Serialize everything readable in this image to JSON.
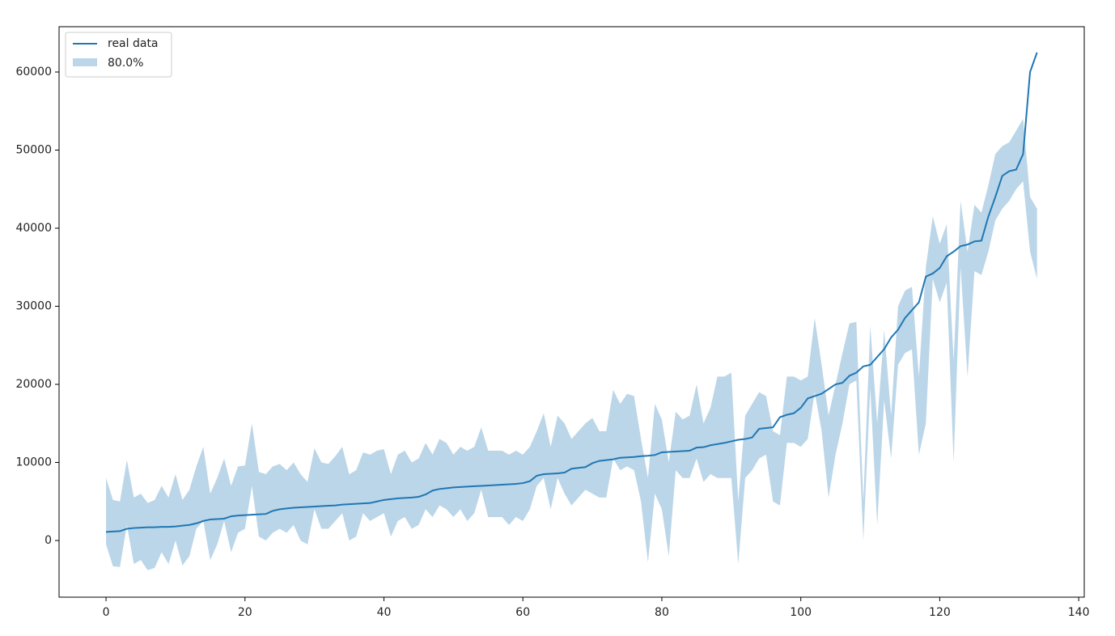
{
  "chart_data": {
    "type": "line",
    "x": [
      0,
      1,
      2,
      3,
      4,
      5,
      6,
      7,
      8,
      9,
      10,
      11,
      12,
      13,
      14,
      15,
      16,
      17,
      18,
      19,
      20,
      21,
      22,
      23,
      24,
      25,
      26,
      27,
      28,
      29,
      30,
      31,
      32,
      33,
      34,
      35,
      36,
      37,
      38,
      39,
      40,
      41,
      42,
      43,
      44,
      45,
      46,
      47,
      48,
      49,
      50,
      51,
      52,
      53,
      54,
      55,
      56,
      57,
      58,
      59,
      60,
      61,
      62,
      63,
      64,
      65,
      66,
      67,
      68,
      69,
      70,
      71,
      72,
      73,
      74,
      75,
      76,
      77,
      78,
      79,
      80,
      81,
      82,
      83,
      84,
      85,
      86,
      87,
      88,
      89,
      90,
      91,
      92,
      93,
      94,
      95,
      96,
      97,
      98,
      99,
      100,
      101,
      102,
      103,
      104,
      105,
      106,
      107,
      108,
      109,
      110,
      111,
      112,
      113,
      114,
      115,
      116,
      117,
      118,
      119,
      120,
      121,
      122,
      123,
      124,
      125,
      126,
      127,
      128,
      129,
      130,
      131,
      132,
      133,
      134
    ],
    "series": [
      {
        "name": "real data",
        "color": "#1f77b4",
        "values": [
          1100,
          1150,
          1200,
          1500,
          1600,
          1650,
          1700,
          1700,
          1750,
          1750,
          1800,
          1900,
          2000,
          2200,
          2500,
          2700,
          2750,
          2800,
          3100,
          3200,
          3250,
          3300,
          3350,
          3400,
          3800,
          4000,
          4100,
          4200,
          4250,
          4300,
          4350,
          4400,
          4450,
          4500,
          4600,
          4650,
          4700,
          4750,
          4800,
          5000,
          5200,
          5300,
          5400,
          5450,
          5500,
          5600,
          5900,
          6400,
          6600,
          6700,
          6800,
          6850,
          6900,
          6950,
          7000,
          7050,
          7100,
          7150,
          7200,
          7250,
          7350,
          7600,
          8300,
          8500,
          8550,
          8600,
          8700,
          9200,
          9300,
          9400,
          9900,
          10200,
          10300,
          10400,
          10600,
          10650,
          10700,
          10800,
          10850,
          10950,
          11300,
          11350,
          11400,
          11450,
          11500,
          11900,
          11950,
          12200,
          12350,
          12500,
          12700,
          12900,
          13000,
          13200,
          14300,
          14400,
          14500,
          15800,
          16100,
          16300,
          17000,
          18200,
          18500,
          18800,
          19400,
          20000,
          20200,
          21100,
          21500,
          22300,
          22500,
          23500,
          24500,
          26000,
          27000,
          28500,
          29500,
          30500,
          33800,
          34200,
          34900,
          36400,
          37000,
          37700,
          37900,
          38300,
          38400,
          41500,
          44000,
          46700,
          47300,
          47500,
          49500,
          60000,
          62500
        ]
      }
    ],
    "band": {
      "name": "80.0%",
      "color": "#1f77b4",
      "alpha": 0.3,
      "upper": [
        8000,
        5200,
        5000,
        10300,
        5500,
        6000,
        4800,
        5200,
        7000,
        5500,
        8500,
        5200,
        6500,
        9500,
        12000,
        6000,
        8000,
        10500,
        7000,
        9500,
        9600,
        15000,
        8800,
        8500,
        9500,
        9800,
        9000,
        10000,
        8500,
        7500,
        11800,
        10000,
        9800,
        10800,
        12000,
        8500,
        9000,
        11300,
        11000,
        11500,
        11700,
        8500,
        11000,
        11500,
        10000,
        10500,
        12500,
        11000,
        13000,
        12500,
        11000,
        12000,
        11500,
        12000,
        14500,
        11500,
        11500,
        11500,
        11000,
        11500,
        11000,
        12000,
        14000,
        16300,
        12000,
        16000,
        15000,
        13000,
        14000,
        15000,
        15700,
        14000,
        14000,
        19300,
        17500,
        18800,
        18500,
        13000,
        8000,
        17500,
        15500,
        10000,
        16500,
        15500,
        16000,
        20000,
        15000,
        17000,
        21000,
        21000,
        21500,
        5000,
        16000,
        17500,
        19000,
        18500,
        14000,
        13500,
        21000,
        21000,
        20500,
        21000,
        28500,
        22500,
        16000,
        20000,
        24000,
        27800,
        28000,
        5000,
        27500,
        15000,
        27000,
        16000,
        30000,
        32000,
        32500,
        21000,
        35000,
        41500,
        38000,
        40500,
        23000,
        43500,
        37000,
        43000,
        42000,
        45500,
        49500,
        50500,
        51000,
        52500,
        54000,
        44000,
        42500
      ],
      "lower": [
        -500,
        -3300,
        -3400,
        2000,
        -3000,
        -2500,
        -3800,
        -3500,
        -1500,
        -3000,
        0,
        -3200,
        -2000,
        1500,
        2500,
        -2500,
        -500,
        2500,
        -1500,
        1000,
        1500,
        7000,
        500,
        0,
        1000,
        1500,
        1000,
        2000,
        0,
        -500,
        4000,
        1500,
        1500,
        2500,
        3500,
        0,
        500,
        3500,
        2500,
        3000,
        3500,
        500,
        2500,
        3000,
        1500,
        2000,
        4000,
        3000,
        4500,
        4000,
        3000,
        4000,
        2500,
        3500,
        6500,
        3000,
        3000,
        3000,
        2000,
        3000,
        2500,
        4000,
        7000,
        8000,
        4000,
        8000,
        6000,
        4500,
        5500,
        6500,
        6000,
        5500,
        5500,
        10500,
        9000,
        9500,
        9000,
        5000,
        -2800,
        6000,
        4000,
        -2000,
        9000,
        8000,
        8000,
        10500,
        7500,
        8500,
        8000,
        8000,
        8000,
        -3000,
        8000,
        9000,
        10500,
        11000,
        5000,
        4500,
        12500,
        12500,
        12000,
        13000,
        19000,
        14000,
        5500,
        11000,
        15000,
        20000,
        20500,
        0,
        19500,
        2000,
        18000,
        10500,
        22500,
        24000,
        24500,
        11000,
        15000,
        33500,
        30500,
        33000,
        10000,
        35000,
        21000,
        34500,
        34000,
        37000,
        41000,
        42500,
        43500,
        45000,
        46000,
        37000,
        33500
      ]
    },
    "xlim": [
      -6.76,
      140.8
    ],
    "ylim": [
      -7254,
      65803
    ],
    "xticks": [
      0,
      20,
      40,
      60,
      80,
      100,
      120,
      140
    ],
    "yticks": [
      0,
      10000,
      20000,
      30000,
      40000,
      50000,
      60000
    ],
    "legend": "upper left"
  }
}
